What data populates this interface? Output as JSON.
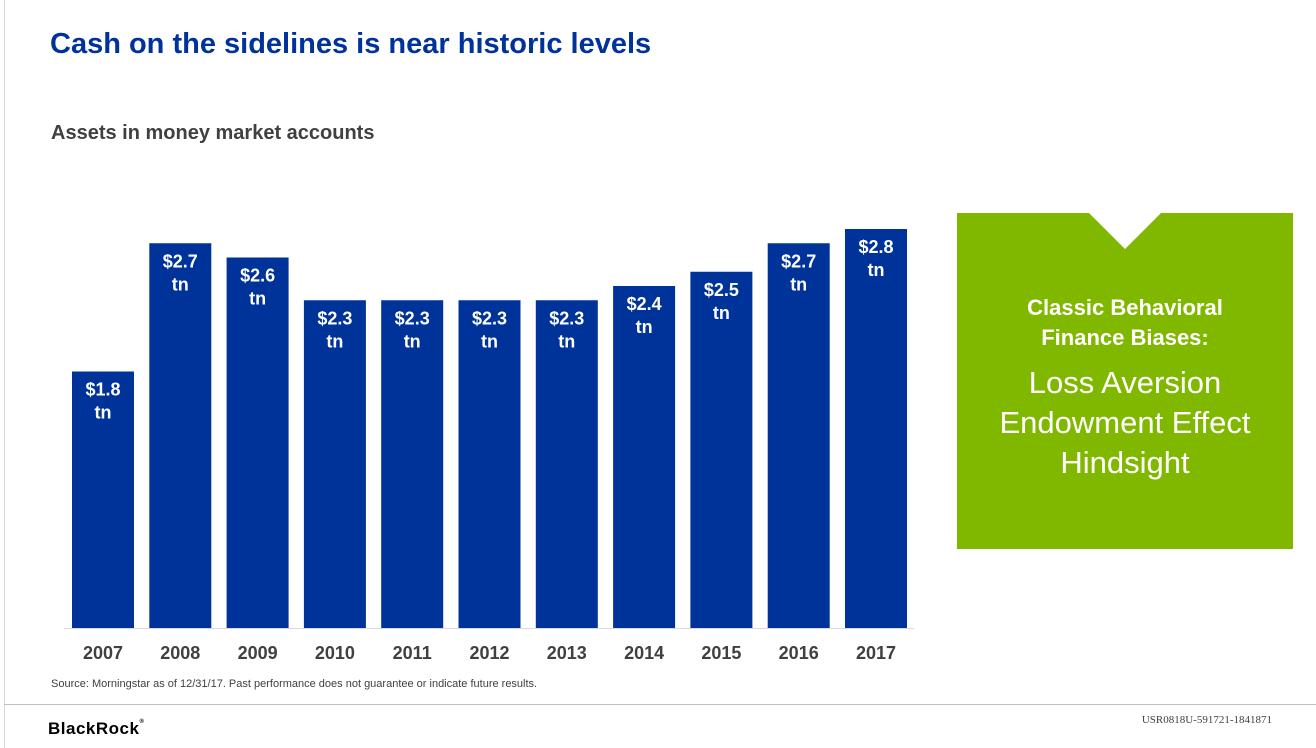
{
  "page": {
    "title": "Cash on the sidelines is near historic levels",
    "subtitle": "Assets in money market accounts",
    "source": "Source: Morningstar as of 12/31/17. Past performance does not guarantee or indicate future results.",
    "logo": "BlackRock",
    "doc_id": "USR0818U-591721-1841871"
  },
  "callout": {
    "heading": [
      "Classic Behavioral",
      "Finance Biases:"
    ],
    "items": [
      "Loss Aversion",
      "Endowment Effect",
      "Hindsight"
    ],
    "color": "#80b800"
  },
  "chart_data": {
    "type": "bar",
    "title": "Assets in money market accounts",
    "categories": [
      "2007",
      "2008",
      "2009",
      "2010",
      "2011",
      "2012",
      "2013",
      "2014",
      "2015",
      "2016",
      "2017"
    ],
    "values": [
      1.8,
      2.7,
      2.6,
      2.3,
      2.3,
      2.3,
      2.3,
      2.4,
      2.5,
      2.7,
      2.8
    ],
    "data_labels": [
      "$1.8",
      "$2.7",
      "$2.6",
      "$2.3",
      "$2.3",
      "$2.3",
      "$2.3",
      "$2.4",
      "$2.5",
      "$2.7",
      "$2.8"
    ],
    "label_unit": "tn",
    "xlabel": "",
    "ylabel": "",
    "bar_color": "#003399",
    "grid": false,
    "legend": false
  }
}
